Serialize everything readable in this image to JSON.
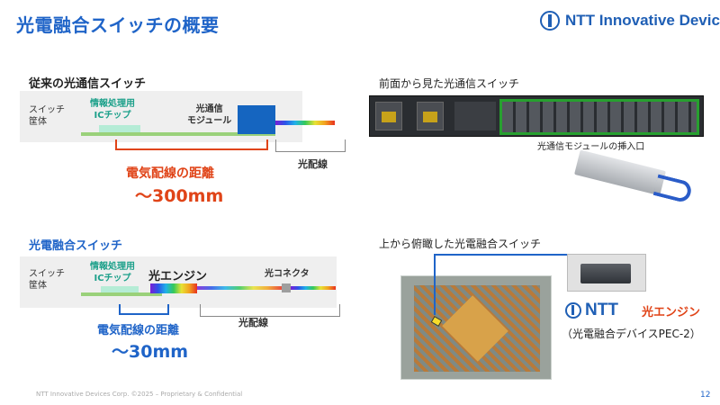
{
  "header": {
    "title": "光電融合スイッチの概要",
    "logo_text": "NTT Innovative Devices"
  },
  "conventional": {
    "heading": "従来の光通信スイッチ",
    "chassis_label": "スイッチ\n筐体",
    "ic_label": "情報処理用\nICチップ",
    "module_label": "光通信\nモジュール",
    "fiber_label": "光配線",
    "distance_label": "電気配線の距離",
    "distance_value": "〜300mm"
  },
  "fusion": {
    "heading": "光電融合スイッチ",
    "chassis_label": "スイッチ\n筐体",
    "ic_label": "情報処理用\nICチップ",
    "engine_label": "光エンジン",
    "connector_label": "光コネクタ",
    "fiber_label": "光配線",
    "distance_label": "電気配線の距離",
    "distance_value": "〜30mm"
  },
  "front_view": {
    "heading": "前面から見た光通信スイッチ",
    "slot_caption": "光通信モジュールの挿入口"
  },
  "top_view": {
    "heading": "上から俯瞰した光電融合スイッチ",
    "ntt_logo": "NTT",
    "engine_label": "光エンジン",
    "device_caption": "（光電融合デバイスPEC-2）"
  },
  "footer": {
    "copyright": "NTT Innovative Devices Corp. ©2025 – Proprietary & Confidential",
    "page": "12"
  }
}
